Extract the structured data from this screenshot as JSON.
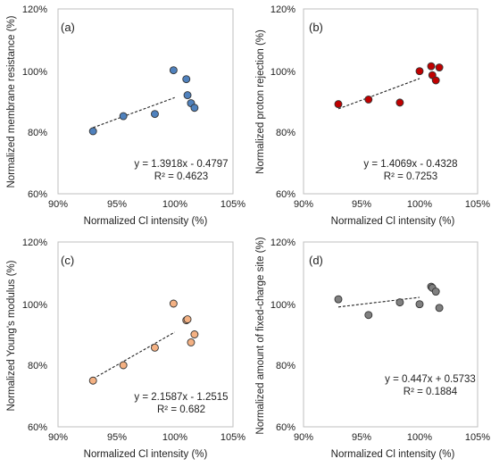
{
  "figure": {
    "background": "#ffffff"
  },
  "chart_data": [
    {
      "panel": "(a)",
      "type": "scatter",
      "xlabel": "Normalized Cl intensity (%)",
      "ylabel": "Normalized membrane resistance (%)",
      "xlim": [
        0.9,
        1.05
      ],
      "ylim": [
        0.6,
        1.2
      ],
      "xticks": [
        "90%",
        "95%",
        "100%",
        "105%"
      ],
      "yticks": [
        "60%",
        "80%",
        "100%",
        "120%"
      ],
      "marker_color": "#4f81bd",
      "x": [
        0.93,
        0.956,
        0.983,
        0.999,
        1.01,
        1.011,
        1.014,
        1.017
      ],
      "y": [
        0.803,
        0.852,
        0.859,
        1.001,
        0.972,
        0.92,
        0.894,
        0.879
      ],
      "trendline": {
        "slope": 1.3918,
        "intercept": -0.4797,
        "x_range": [
          0.93,
          1.0
        ]
      },
      "equation": "y = 1.3918x - 0.4797",
      "r2": "R² = 0.4623"
    },
    {
      "panel": "(b)",
      "type": "scatter",
      "xlabel": "Normalized Cl intensity (%)",
      "ylabel": "Normalized proton rejection (%)",
      "xlim": [
        0.9,
        1.05
      ],
      "ylim": [
        0.6,
        1.2
      ],
      "xticks": [
        "90%",
        "95%",
        "100%",
        "105%"
      ],
      "yticks": [
        "60%",
        "80%",
        "100%",
        "120%"
      ],
      "marker_color": "#c00000",
      "x": [
        0.93,
        0.956,
        0.983,
        1.0,
        1.01,
        1.011,
        1.014,
        1.017
      ],
      "y": [
        0.891,
        0.906,
        0.896,
        0.998,
        1.014,
        0.985,
        0.968,
        1.01
      ],
      "trendline": {
        "slope": 1.4069,
        "intercept": -0.4328,
        "x_range": [
          0.93,
          1.0
        ]
      },
      "equation": "y = 1.4069x - 0.4328",
      "r2": "R² = 0.7253"
    },
    {
      "panel": "(c)",
      "type": "scatter",
      "xlabel": "Normalized Cl intensity (%)",
      "ylabel": "Normalized Young's modulus (%)",
      "xlim": [
        0.9,
        1.05
      ],
      "ylim": [
        0.6,
        1.2
      ],
      "xticks": [
        "90%",
        "95%",
        "100%",
        "105%"
      ],
      "yticks": [
        "60%",
        "80%",
        "100%",
        "120%"
      ],
      "marker_color": "#f4b183",
      "x": [
        0.93,
        0.956,
        0.983,
        0.999,
        1.01,
        1.011,
        1.014,
        1.017
      ],
      "y": [
        0.75,
        0.8,
        0.857,
        1.0,
        0.946,
        0.949,
        0.874,
        0.9
      ],
      "trendline": {
        "slope": 2.1587,
        "intercept": -1.2515,
        "x_range": [
          0.93,
          1.0
        ]
      },
      "equation": "y = 2.1587x - 1.2515",
      "r2": "R² = 0.682"
    },
    {
      "panel": "(d)",
      "type": "scatter",
      "xlabel": "Normalized Cl intensity (%)",
      "ylabel": "Normalized amount of fixed-charge site (%)",
      "xlim": [
        0.9,
        1.05
      ],
      "ylim": [
        0.6,
        1.2
      ],
      "xticks": [
        "90%",
        "95%",
        "100%",
        "105%"
      ],
      "yticks": [
        "60%",
        "80%",
        "100%",
        "120%"
      ],
      "marker_color": "#808080",
      "x": [
        0.93,
        0.956,
        0.983,
        1.0,
        1.01,
        1.011,
        1.014,
        1.017
      ],
      "y": [
        1.014,
        0.963,
        1.004,
        0.998,
        1.055,
        1.051,
        1.039,
        0.986
      ],
      "trendline": {
        "slope": 0.447,
        "intercept": 0.5733,
        "x_range": [
          0.93,
          1.0
        ]
      },
      "equation": "y = 0.447x + 0.5733",
      "r2": "R² = 0.1884"
    }
  ]
}
